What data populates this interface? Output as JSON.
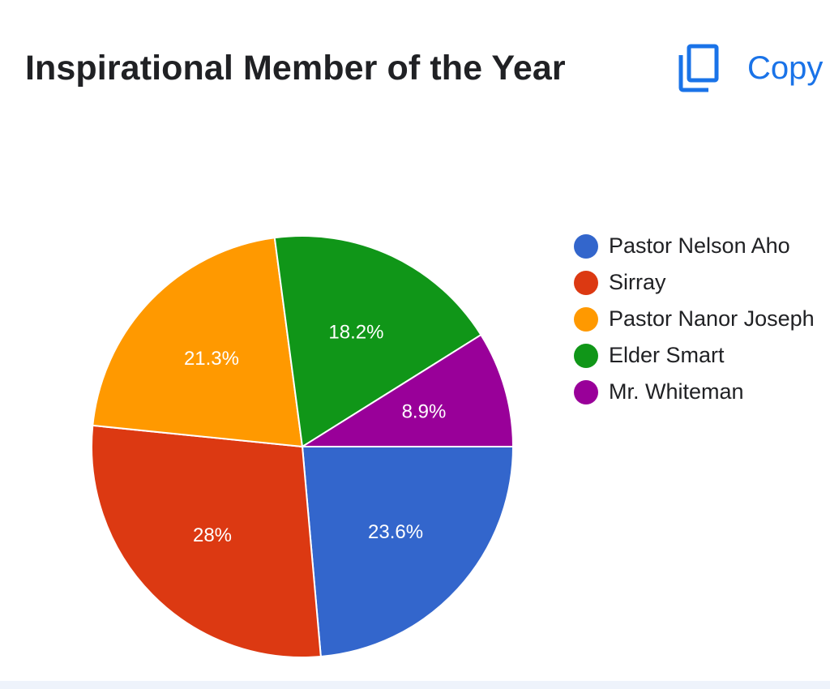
{
  "header": {
    "title": "Inspirational Member of the Year",
    "copy_label": "Copy",
    "copy_icon": "copy-icon"
  },
  "chart_data": {
    "type": "pie",
    "title": "Inspirational Member of the Year",
    "legend_position": "right",
    "slices": [
      {
        "name": "Pastor Nelson Aho",
        "value": 23.6,
        "label": "23.6%",
        "color": "#3366cc"
      },
      {
        "name": "Sirray",
        "value": 28,
        "label": "28%",
        "color": "#dc3912"
      },
      {
        "name": "Pastor Nanor Joseph",
        "value": 21.3,
        "label": "21.3%",
        "color": "#ff9900"
      },
      {
        "name": "Elder Smart",
        "value": 18.2,
        "label": "18.2%",
        "color": "#109618"
      },
      {
        "name": "Mr. Whiteman",
        "value": 8.9,
        "label": "8.9%",
        "color": "#990099"
      }
    ]
  },
  "legend": {
    "items": [
      {
        "label": "Pastor Nelson Aho",
        "color": "#3366cc"
      },
      {
        "label": "Sirray",
        "color": "#dc3912"
      },
      {
        "label": "Pastor Nanor Joseph",
        "color": "#ff9900"
      },
      {
        "label": "Elder Smart",
        "color": "#109618"
      },
      {
        "label": "Mr. Whiteman",
        "color": "#990099"
      }
    ]
  }
}
